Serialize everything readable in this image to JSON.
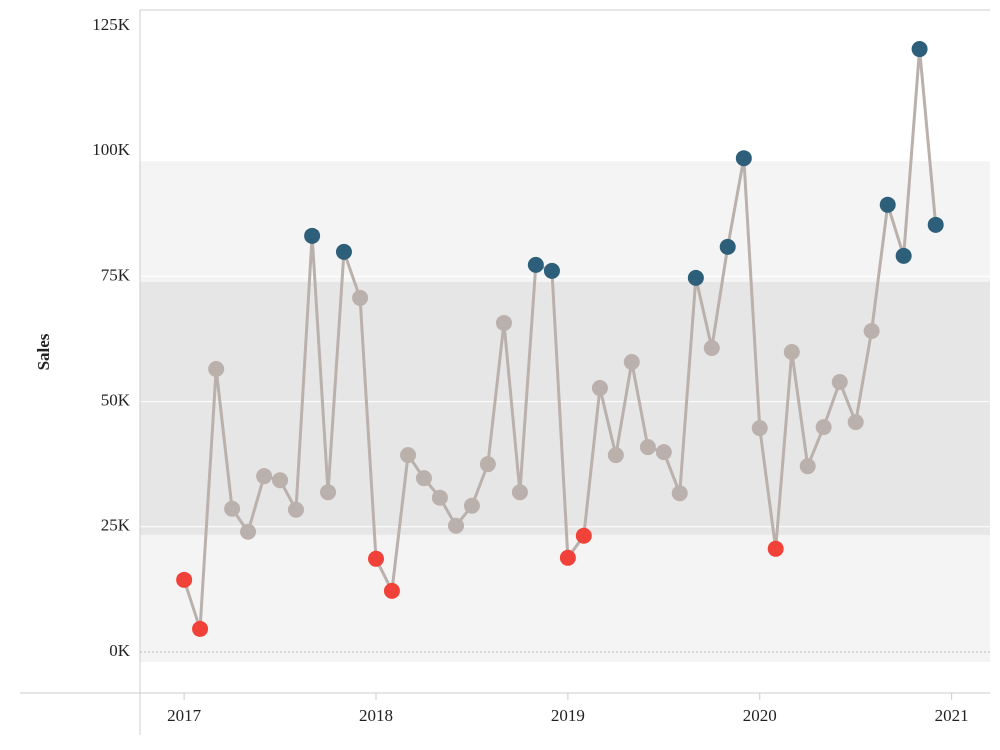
{
  "chart_data": {
    "type": "line",
    "y_label": "Sales",
    "x": [
      2017.0,
      2017.083,
      2017.167,
      2017.25,
      2017.333,
      2017.417,
      2017.5,
      2017.583,
      2017.667,
      2017.75,
      2017.833,
      2017.917,
      2018.0,
      2018.083,
      2018.167,
      2018.25,
      2018.333,
      2018.417,
      2018.5,
      2018.583,
      2018.667,
      2018.75,
      2018.833,
      2018.917,
      2019.0,
      2019.083,
      2019.167,
      2019.25,
      2019.333,
      2019.417,
      2019.5,
      2019.583,
      2019.667,
      2019.75,
      2019.833,
      2019.917,
      2020.0,
      2020.083,
      2020.167,
      2020.25,
      2020.333,
      2020.417,
      2020.5,
      2020.583,
      2020.667,
      2020.75,
      2020.833,
      2020.917
    ],
    "series": [
      {
        "name": "Sales",
        "color": "#bab0ac",
        "values": [
          14.4,
          4.6,
          56.5,
          28.6,
          24.0,
          35.1,
          34.3,
          28.4,
          83.1,
          31.9,
          79.9,
          70.7,
          18.6,
          12.2,
          39.3,
          34.7,
          30.8,
          25.2,
          29.2,
          37.5,
          65.7,
          31.9,
          77.3,
          76.1,
          18.8,
          23.2,
          52.7,
          39.3,
          57.9,
          40.9,
          39.9,
          31.7,
          74.7,
          60.7,
          80.9,
          98.6,
          44.7,
          20.6,
          59.9,
          37.1,
          44.9,
          53.9,
          45.9,
          64.1,
          89.3,
          79.1,
          120.4,
          85.3
        ]
      }
    ],
    "low_color": "#f1423a",
    "high_color": "#2e5f7a",
    "bands": [
      {
        "from": -2,
        "to": 98,
        "color": "#f4f4f4"
      },
      {
        "from": 23.4,
        "to": 73.9,
        "color": "#e6e6e6"
      }
    ],
    "xlim": [
      2016.77,
      2021.2
    ],
    "xticks": [
      2017,
      2018,
      2019,
      2020,
      2021
    ],
    "ylim": [
      -8.2,
      128.2
    ],
    "yticks": [
      {
        "value": 0,
        "label": "0K"
      },
      {
        "value": 25,
        "label": "25K"
      },
      {
        "value": 50,
        "label": "50K"
      },
      {
        "value": 75,
        "label": "75K"
      },
      {
        "value": 100,
        "label": "100K"
      },
      {
        "value": 125,
        "label": "125K"
      }
    ],
    "grid": true
  }
}
